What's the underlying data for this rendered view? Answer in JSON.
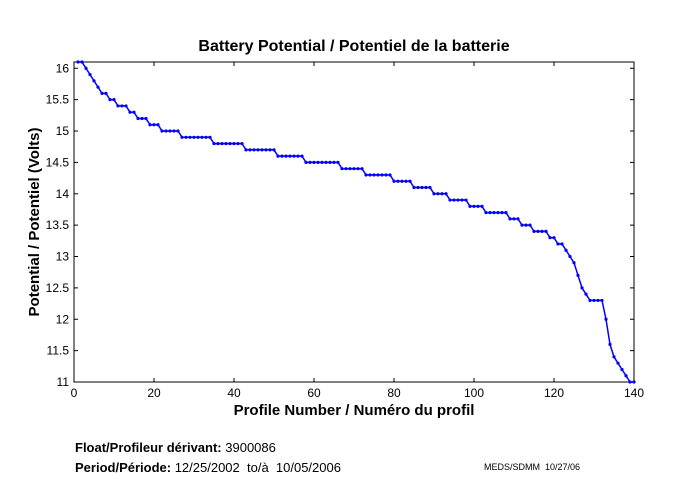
{
  "chart_data": {
    "type": "line",
    "title": "Battery Potential / Potentiel de la batterie",
    "xlabel": "Profile Number / Numéro du profil",
    "ylabel": "Potential / Potentiel (Volts)",
    "xlim": [
      0,
      140
    ],
    "ylim": [
      11,
      16.1
    ],
    "xticks": [
      0,
      20,
      40,
      60,
      80,
      100,
      120,
      140
    ],
    "yticks": [
      11,
      11.5,
      12,
      12.5,
      13,
      13.5,
      14,
      14.5,
      15,
      15.5,
      16
    ],
    "grid": false,
    "legend": "none",
    "line_color": "#0000ff",
    "x": [
      1,
      2,
      3,
      4,
      5,
      6,
      7,
      8,
      9,
      10,
      11,
      12,
      13,
      14,
      15,
      16,
      17,
      18,
      19,
      20,
      21,
      22,
      23,
      24,
      25,
      26,
      27,
      28,
      29,
      30,
      31,
      32,
      33,
      34,
      35,
      36,
      37,
      38,
      39,
      40,
      41,
      42,
      43,
      44,
      45,
      46,
      47,
      48,
      49,
      50,
      51,
      52,
      53,
      54,
      55,
      56,
      57,
      58,
      59,
      60,
      61,
      62,
      63,
      64,
      65,
      66,
      67,
      68,
      69,
      70,
      71,
      72,
      73,
      74,
      75,
      76,
      77,
      78,
      79,
      80,
      81,
      82,
      83,
      84,
      85,
      86,
      87,
      88,
      89,
      90,
      91,
      92,
      93,
      94,
      95,
      96,
      97,
      98,
      99,
      100,
      101,
      102,
      103,
      104,
      105,
      106,
      107,
      108,
      109,
      110,
      111,
      112,
      113,
      114,
      115,
      116,
      117,
      118,
      119,
      120,
      121,
      122,
      123,
      124,
      125,
      126,
      127,
      128,
      129,
      130,
      131,
      132,
      133,
      134,
      135,
      136,
      137,
      138,
      139,
      140
    ],
    "values": [
      16.1,
      16.1,
      16.0,
      15.9,
      15.8,
      15.7,
      15.6,
      15.6,
      15.5,
      15.5,
      15.4,
      15.4,
      15.4,
      15.3,
      15.3,
      15.2,
      15.2,
      15.2,
      15.1,
      15.1,
      15.1,
      15.0,
      15.0,
      15.0,
      15.0,
      15.0,
      14.9,
      14.9,
      14.9,
      14.9,
      14.9,
      14.9,
      14.9,
      14.9,
      14.8,
      14.8,
      14.8,
      14.8,
      14.8,
      14.8,
      14.8,
      14.8,
      14.7,
      14.7,
      14.7,
      14.7,
      14.7,
      14.7,
      14.7,
      14.7,
      14.6,
      14.6,
      14.6,
      14.6,
      14.6,
      14.6,
      14.6,
      14.5,
      14.5,
      14.5,
      14.5,
      14.5,
      14.5,
      14.5,
      14.5,
      14.5,
      14.4,
      14.4,
      14.4,
      14.4,
      14.4,
      14.4,
      14.3,
      14.3,
      14.3,
      14.3,
      14.3,
      14.3,
      14.3,
      14.2,
      14.2,
      14.2,
      14.2,
      14.2,
      14.1,
      14.1,
      14.1,
      14.1,
      14.1,
      14.0,
      14.0,
      14.0,
      14.0,
      13.9,
      13.9,
      13.9,
      13.9,
      13.9,
      13.8,
      13.8,
      13.8,
      13.8,
      13.7,
      13.7,
      13.7,
      13.7,
      13.7,
      13.7,
      13.6,
      13.6,
      13.6,
      13.5,
      13.5,
      13.5,
      13.4,
      13.4,
      13.4,
      13.4,
      13.3,
      13.3,
      13.2,
      13.2,
      13.1,
      13.0,
      12.9,
      12.7,
      12.5,
      12.4,
      12.3,
      12.3,
      12.3,
      12.3,
      12.0,
      11.6,
      11.4,
      11.3,
      11.2,
      11.1,
      11.0,
      11.0
    ]
  },
  "footer": {
    "float_label": "Float/Profileur dérivant:",
    "float_value": "3900086",
    "period_label": "Period/Période:",
    "period_value": "12/25/2002  to/à  10/05/2006",
    "credit": "MEDS/SDMM  10/27/06"
  }
}
